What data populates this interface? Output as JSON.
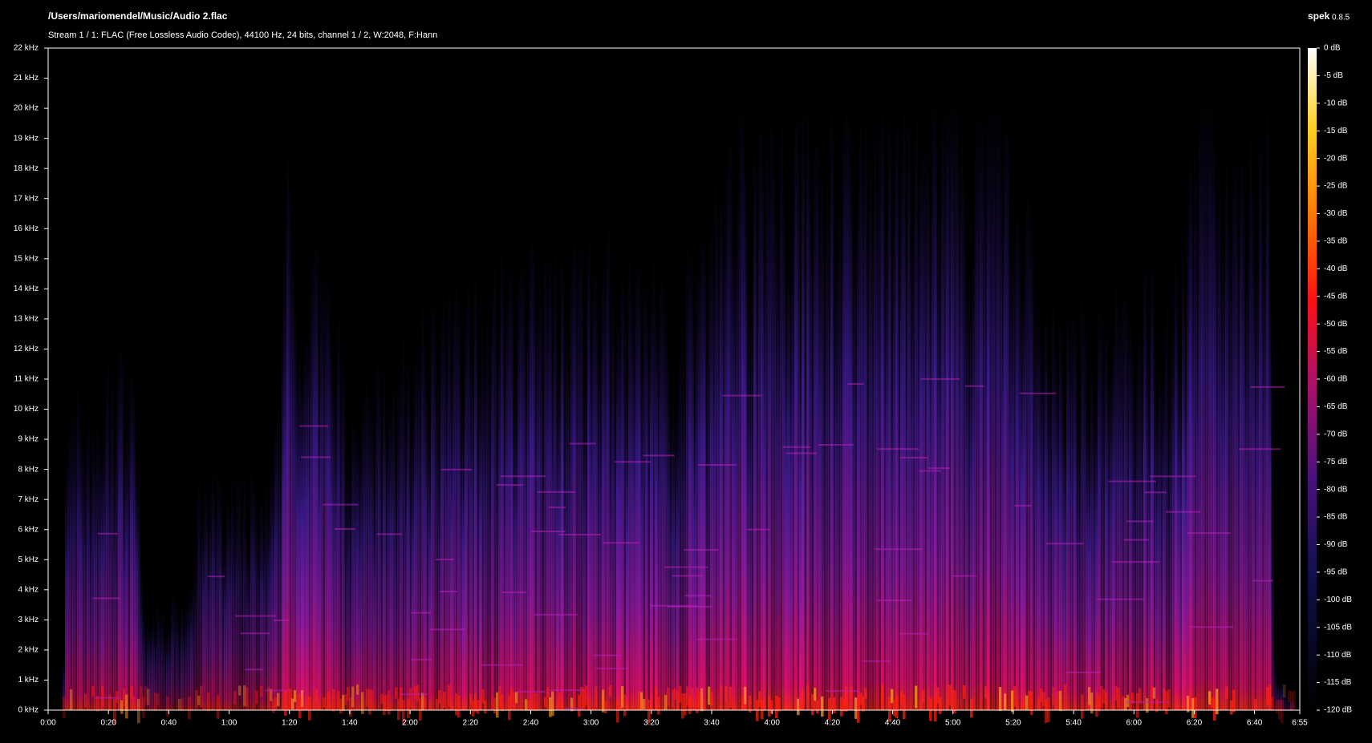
{
  "header": {
    "title": "/Users/mariomendel/Music/Audio 2.flac",
    "subtitle": "Stream 1 / 1: FLAC (Free Lossless Audio Codec), 44100 Hz, 24 bits, channel 1 / 2, W:2048, F:Hann",
    "app": "spek",
    "version": "0.8.5"
  },
  "frequency_axis": [
    "0 kHz",
    "1 kHz",
    "2 kHz",
    "3 kHz",
    "4 kHz",
    "5 kHz",
    "6 kHz",
    "7 kHz",
    "8 kHz",
    "9 kHz",
    "10 kHz",
    "11 kHz",
    "12 kHz",
    "13 kHz",
    "14 kHz",
    "15 kHz",
    "16 kHz",
    "17 kHz",
    "18 kHz",
    "19 kHz",
    "20 kHz",
    "21 kHz",
    "22 kHz"
  ],
  "time_axis": [
    "0:00",
    "0:20",
    "0:40",
    "1:00",
    "1:20",
    "1:40",
    "2:00",
    "2:20",
    "2:40",
    "3:00",
    "3:20",
    "3:40",
    "4:00",
    "4:20",
    "4:40",
    "5:00",
    "5:20",
    "5:40",
    "6:00",
    "6:20",
    "6:40",
    "6:55"
  ],
  "color_scale": [
    "0 dB",
    "-5 dB",
    "-10 dB",
    "-15 dB",
    "-20 dB",
    "-25 dB",
    "-30 dB",
    "-35 dB",
    "-40 dB",
    "-45 dB",
    "-50 dB",
    "-55 dB",
    "-60 dB",
    "-65 dB",
    "-70 dB",
    "-75 dB",
    "-80 dB",
    "-85 dB",
    "-90 dB",
    "-95 dB",
    "-100 dB",
    "-105 dB",
    "-110 dB",
    "-115 dB",
    "-120 dB"
  ]
}
